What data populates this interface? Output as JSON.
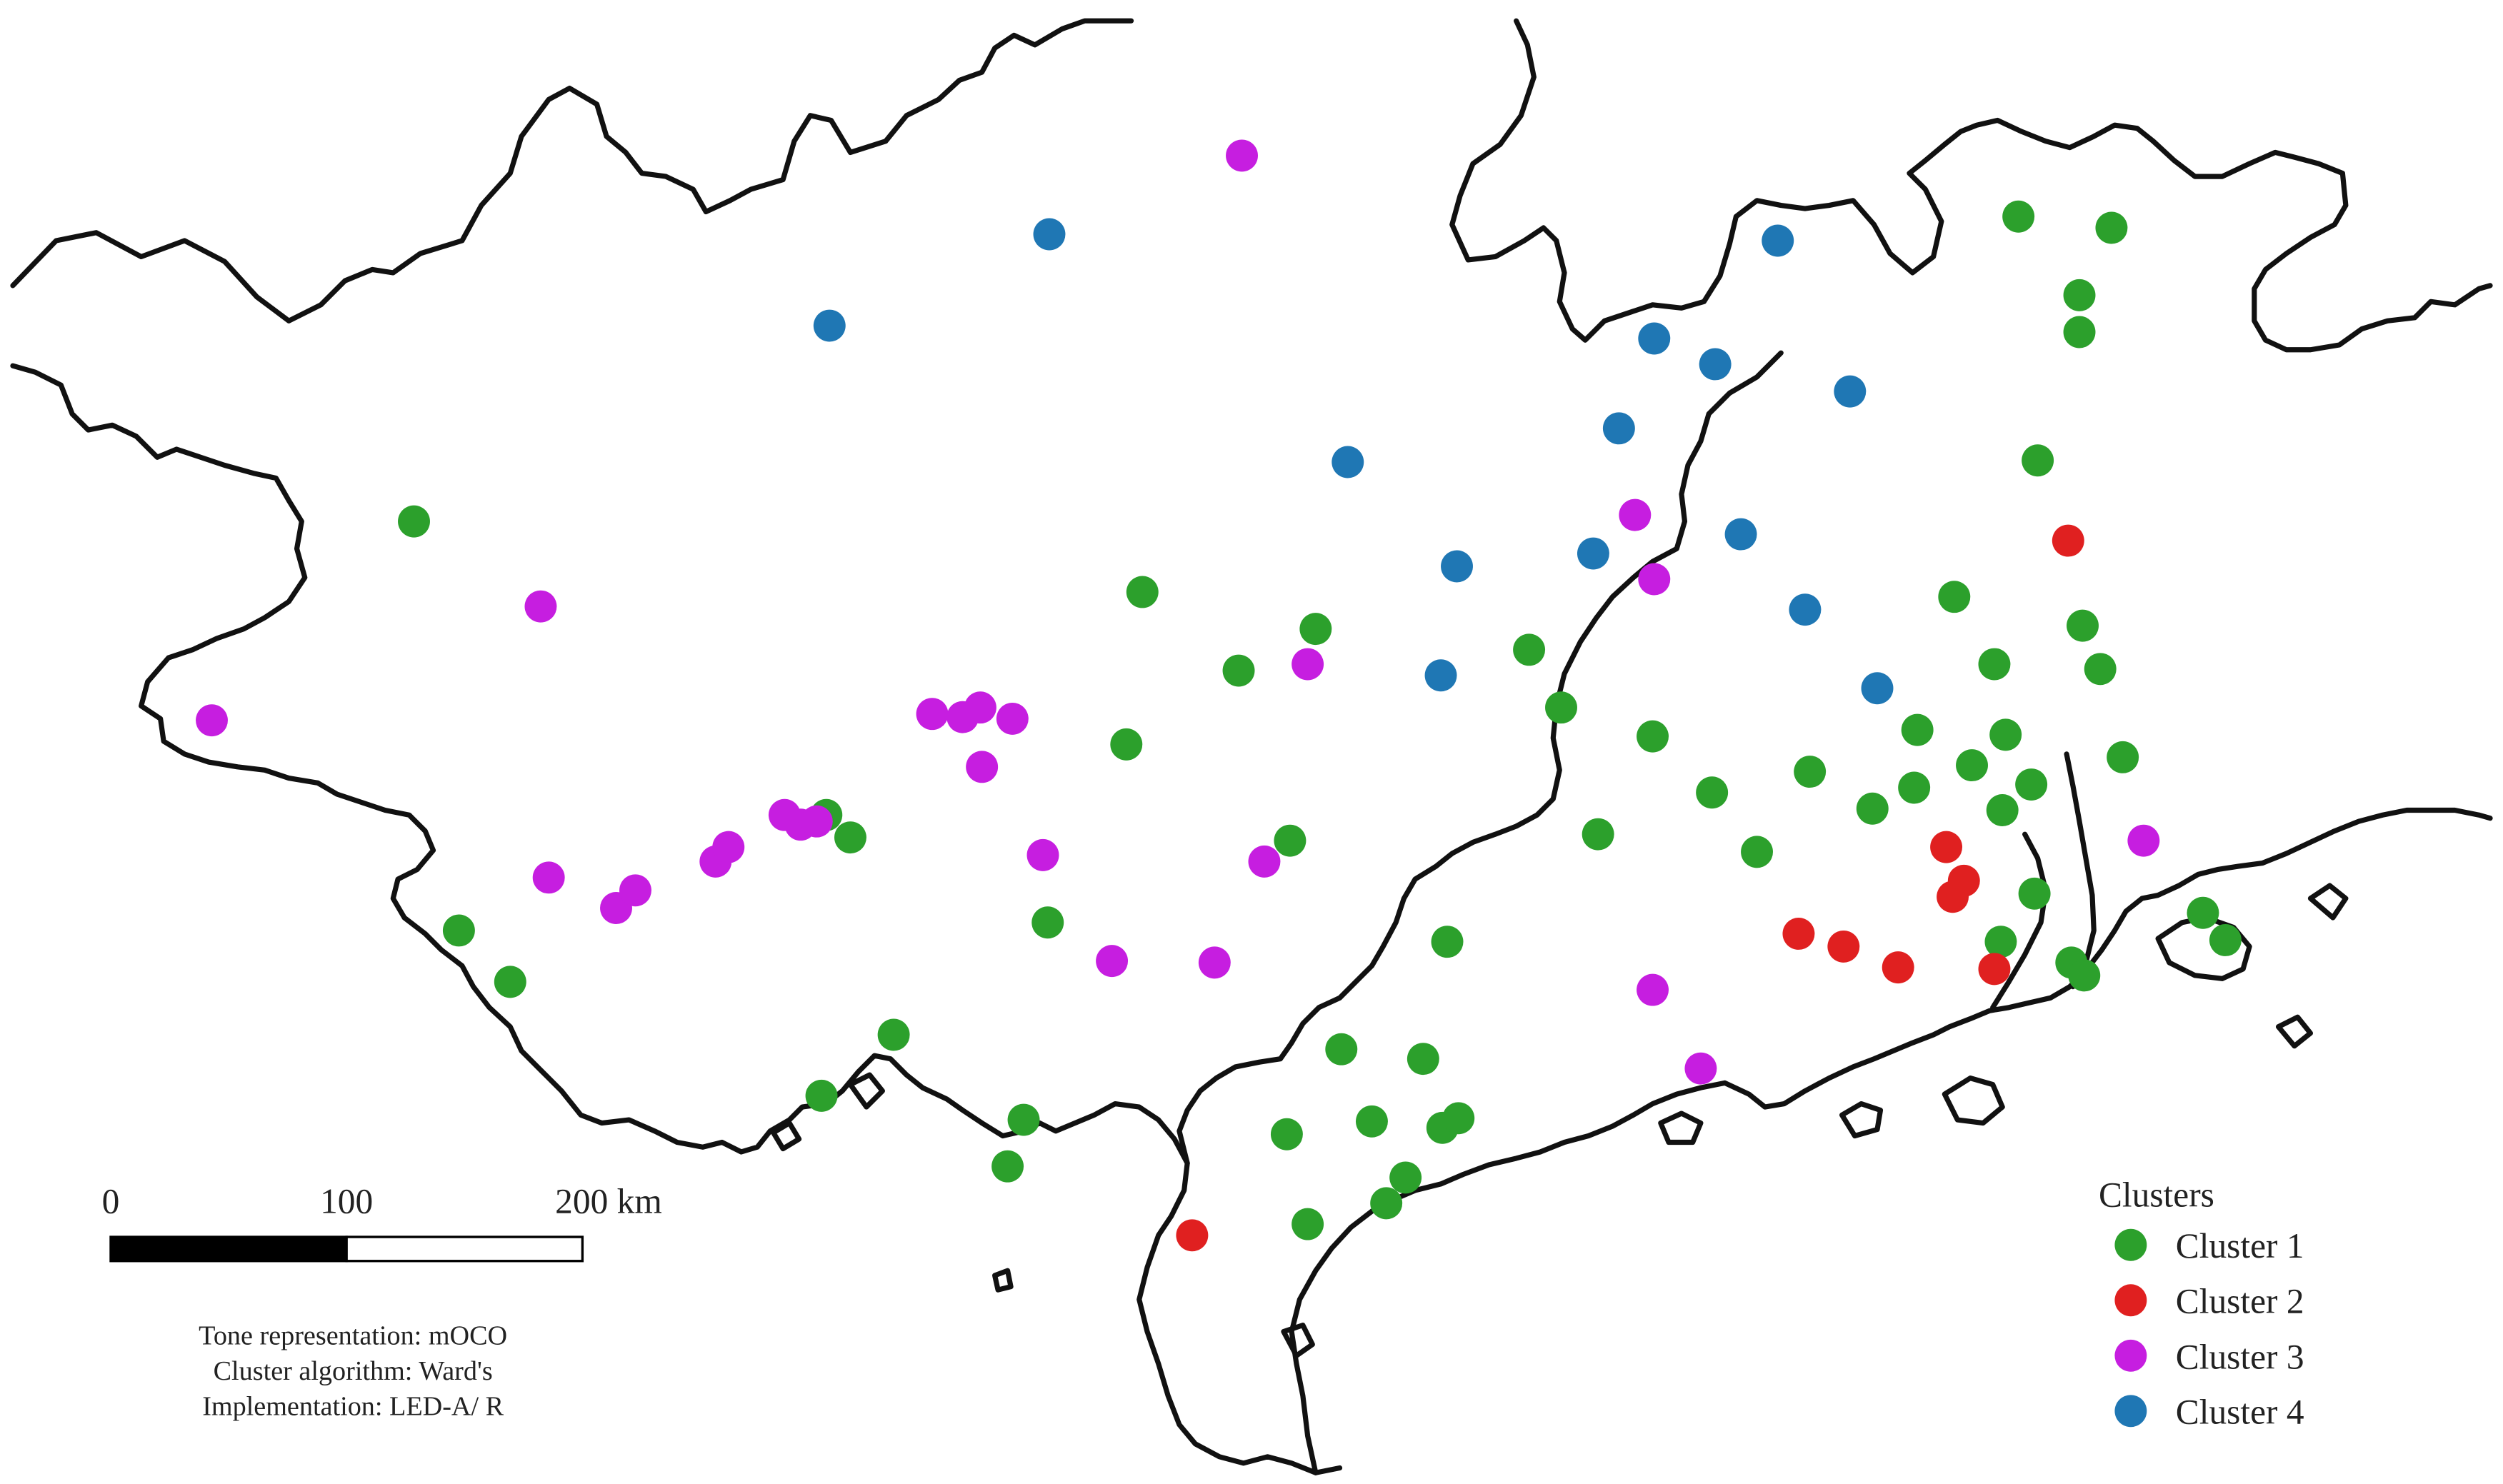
{
  "scale_bar": {
    "ticks": [
      "0",
      "100",
      "200 km"
    ]
  },
  "caption": {
    "lines": [
      "Tone representation: mOCO",
      "Cluster algorithm: Ward's",
      "Implementation: LED-A/ R"
    ]
  },
  "legend": {
    "title": "Clusters",
    "entries": [
      {
        "label": "Cluster 1",
        "color": "#2ca02c"
      },
      {
        "label": "Cluster 2",
        "color": "#e02020"
      },
      {
        "label": "Cluster 3",
        "color": "#c61ee0"
      },
      {
        "label": "Cluster 4",
        "color": "#1f77b4"
      }
    ]
  },
  "clusters": [
    {
      "name": "Cluster 1",
      "color": "#2ca02c",
      "points": [
        [
          258,
          325
        ],
        [
          286,
          580
        ],
        [
          318,
          612
        ],
        [
          512,
          683
        ],
        [
          515,
          508
        ],
        [
          530,
          522
        ],
        [
          557,
          645
        ],
        [
          628,
          727
        ],
        [
          638,
          698
        ],
        [
          653,
          575
        ],
        [
          702,
          464
        ],
        [
          712,
          369
        ],
        [
          772,
          418
        ],
        [
          804,
          524
        ],
        [
          820,
          392
        ],
        [
          802,
          707
        ],
        [
          815,
          763
        ],
        [
          836,
          654
        ],
        [
          855,
          699
        ],
        [
          864,
          750
        ],
        [
          876,
          734
        ],
        [
          887,
          660
        ],
        [
          899,
          703
        ],
        [
          909,
          697
        ],
        [
          902,
          587
        ],
        [
          953,
          405
        ],
        [
          973,
          441
        ],
        [
          996,
          520
        ],
        [
          1030,
          459
        ],
        [
          1067,
          494
        ],
        [
          1095,
          531
        ],
        [
          1128,
          481
        ],
        [
          1167,
          504
        ],
        [
          1193,
          491
        ],
        [
          1195,
          455
        ],
        [
          1218,
          372
        ],
        [
          1229,
          477
        ],
        [
          1243,
          414
        ],
        [
          1248,
          505
        ],
        [
          1250,
          458
        ],
        [
          1247,
          587
        ],
        [
          1258,
          135
        ],
        [
          1266,
          489
        ],
        [
          1268,
          557
        ],
        [
          1270,
          287
        ],
        [
          1291,
          600
        ],
        [
          1299,
          608
        ],
        [
          1296,
          184
        ],
        [
          1296,
          207
        ],
        [
          1298,
          390
        ],
        [
          1309,
          417
        ],
        [
          1316,
          142
        ],
        [
          1323,
          472
        ],
        [
          1373,
          569
        ],
        [
          1387,
          586
        ]
      ]
    },
    {
      "name": "Cluster 2",
      "color": "#e02020",
      "points": [
        [
          743,
          770
        ],
        [
          1121,
          582
        ],
        [
          1149,
          590
        ],
        [
          1183,
          603
        ],
        [
          1213,
          528
        ],
        [
          1217,
          559
        ],
        [
          1224,
          549
        ],
        [
          1243,
          604
        ],
        [
          1289,
          337
        ]
      ]
    },
    {
      "name": "Cluster 3",
      "color": "#c61ee0",
      "points": [
        [
          132,
          449
        ],
        [
          337,
          378
        ],
        [
          342,
          547
        ],
        [
          384,
          566
        ],
        [
          396,
          555
        ],
        [
          446,
          537
        ],
        [
          454,
          528
        ],
        [
          489,
          508
        ],
        [
          499,
          514
        ],
        [
          509,
          512
        ],
        [
          581,
          445
        ],
        [
          600,
          447
        ],
        [
          611,
          441
        ],
        [
          631,
          448
        ],
        [
          612,
          478
        ],
        [
          650,
          533
        ],
        [
          693,
          599
        ],
        [
          757,
          600
        ],
        [
          774,
          97
        ],
        [
          788,
          537
        ],
        [
          815,
          414
        ],
        [
          1019,
          321
        ],
        [
          1031,
          361
        ],
        [
          1030,
          617
        ],
        [
          1060,
          666
        ],
        [
          1336,
          524
        ]
      ]
    },
    {
      "name": "Cluster 4",
      "color": "#1f77b4",
      "points": [
        [
          517,
          203
        ],
        [
          654,
          146
        ],
        [
          840,
          288
        ],
        [
          898,
          421
        ],
        [
          908,
          353
        ],
        [
          993,
          345
        ],
        [
          1009,
          267
        ],
        [
          1031,
          211
        ],
        [
          1069,
          227
        ],
        [
          1085,
          333
        ],
        [
          1108,
          150
        ],
        [
          1125,
          380
        ],
        [
          1153,
          244
        ],
        [
          1170,
          429
        ]
      ]
    }
  ]
}
